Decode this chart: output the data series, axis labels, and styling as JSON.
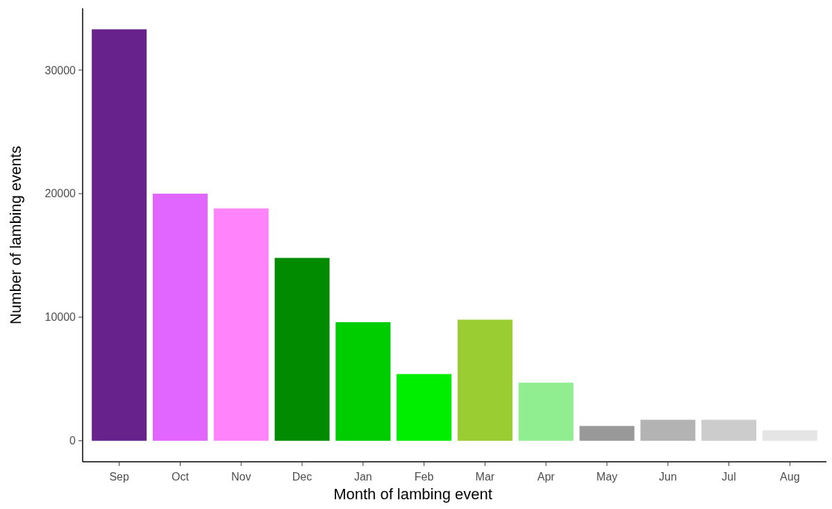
{
  "chart_data": {
    "type": "bar",
    "xlabel": "Month of lambing event",
    "ylabel": "Number of lambing events",
    "categories": [
      "Sep",
      "Oct",
      "Nov",
      "Dec",
      "Jan",
      "Feb",
      "Mar",
      "Apr",
      "May",
      "Jun",
      "Jul",
      "Aug"
    ],
    "values": [
      33300,
      20000,
      18800,
      14800,
      9600,
      5400,
      9800,
      4700,
      1200,
      1700,
      1700,
      850
    ],
    "colors": [
      "#68228b",
      "#e066ff",
      "#ff83fa",
      "#008b00",
      "#00cd00",
      "#00ee00",
      "#9acd32",
      "#90ee90",
      "#999999",
      "#b3b3b3",
      "#cccccc",
      "#e5e5e5"
    ],
    "ylim": [
      -1700,
      35000
    ],
    "yticks": [
      0,
      10000,
      20000,
      30000
    ],
    "grid": false
  }
}
